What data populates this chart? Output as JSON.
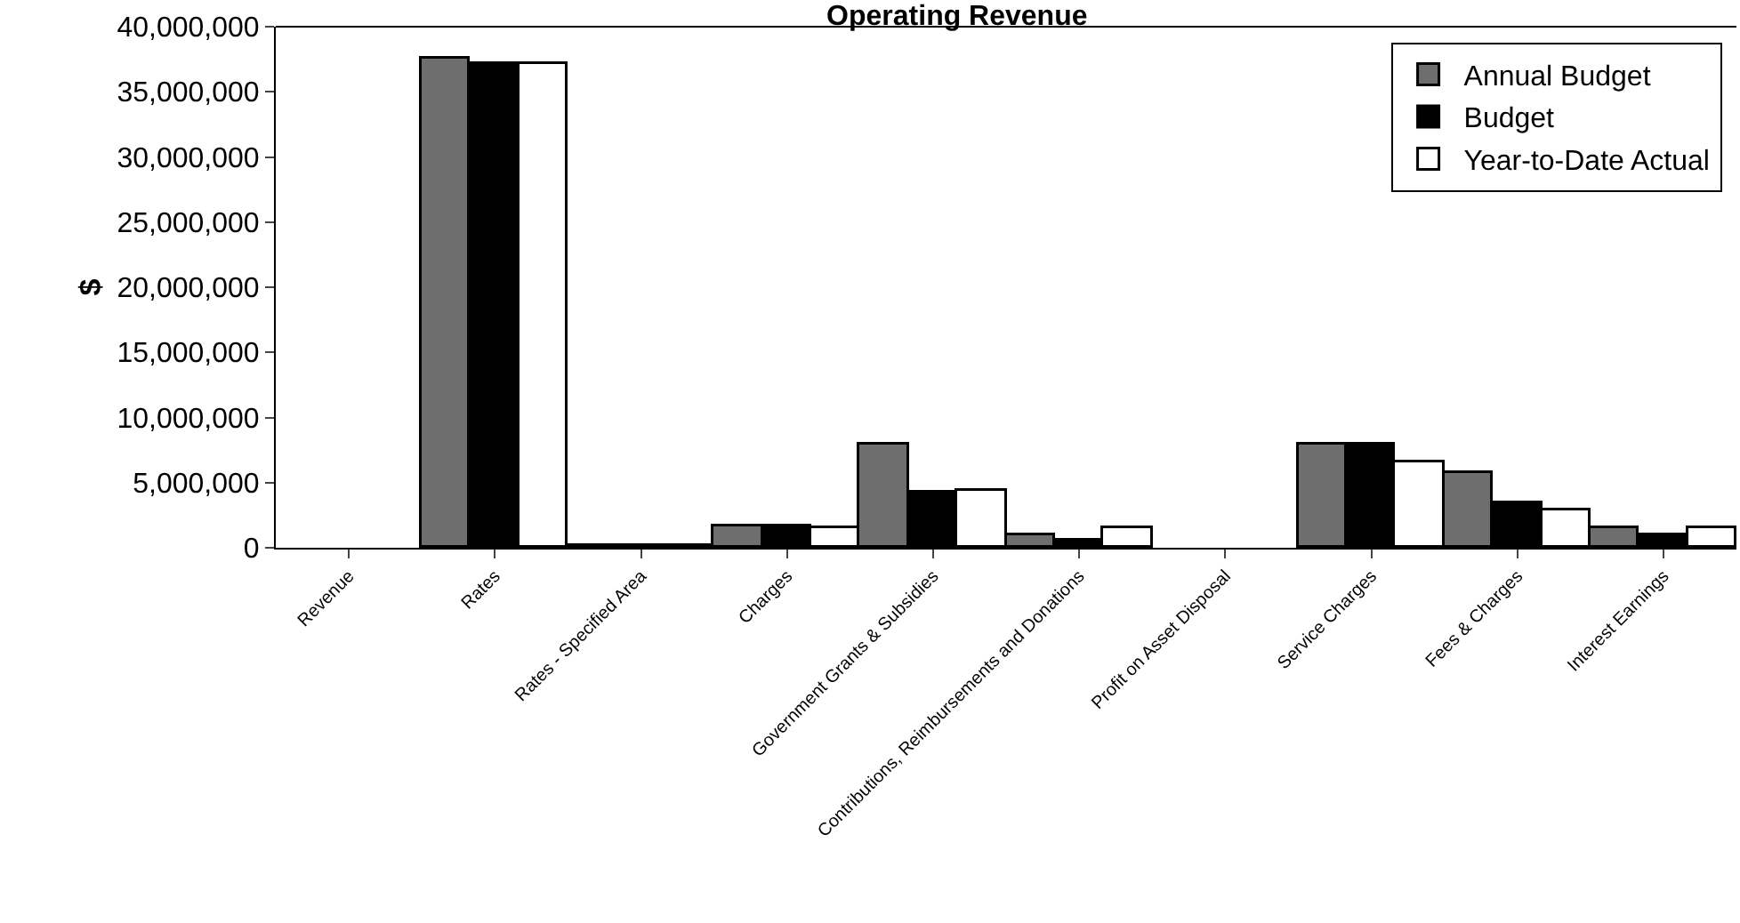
{
  "chart_data": {
    "type": "bar",
    "title": "Operating Revenue",
    "ylabel": "$",
    "categories": [
      "Revenue",
      "Rates",
      "Rates - Specified Area",
      "Charges",
      "Government Grants & Subsidies",
      "Contributions, Reimbursements and Donations",
      "Profit on Asset Disposal",
      "Service Charges",
      "Fees & Charges",
      "Interest Earnings"
    ],
    "series": [
      {
        "name": "Annual Budget",
        "color": "#6e6e6e",
        "values": [
          0,
          37500000,
          100000,
          1600000,
          7900000,
          900000,
          0,
          7900000,
          5700000,
          1500000
        ]
      },
      {
        "name": "Budget",
        "color": "#000000",
        "values": [
          0,
          37200000,
          100000,
          1600000,
          4200000,
          600000,
          0,
          7900000,
          3400000,
          900000
        ]
      },
      {
        "name": "Year-to-Date Actual",
        "color": "#ffffff",
        "values": [
          0,
          37200000,
          100000,
          1500000,
          4400000,
          1500000,
          0,
          6500000,
          2800000,
          1500000
        ]
      }
    ],
    "ylim": [
      0,
      40000000
    ],
    "yticks": [
      {
        "value": 0,
        "label": "0"
      },
      {
        "value": 5000000,
        "label": "5,000,000"
      },
      {
        "value": 10000000,
        "label": "10,000,000"
      },
      {
        "value": 15000000,
        "label": "15,000,000"
      },
      {
        "value": 20000000,
        "label": "20,000,000"
      },
      {
        "value": 25000000,
        "label": "25,000,000"
      },
      {
        "value": 30000000,
        "label": "30,000,000"
      },
      {
        "value": 35000000,
        "label": "35,000,000"
      },
      {
        "value": 40000000,
        "label": "40,000,000"
      }
    ],
    "legend": "top right"
  }
}
